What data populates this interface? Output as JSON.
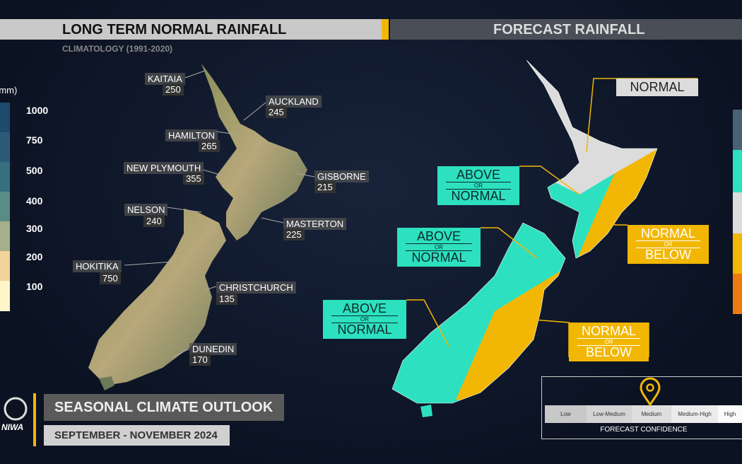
{
  "header": {
    "left_title": "LONG TERM NORMAL RAINFALL",
    "left_subtitle": "CLIMATOLOGY (1991-2020)",
    "right_title": "FORECAST RAINFALL"
  },
  "legend": {
    "unit": "(mm)",
    "levels": [
      "1000",
      "750",
      "500",
      "400",
      "300",
      "200",
      "100"
    ]
  },
  "stations": [
    {
      "name": "KAITAIA",
      "value": "250"
    },
    {
      "name": "AUCKLAND",
      "value": "245"
    },
    {
      "name": "HAMILTON",
      "value": "265"
    },
    {
      "name": "NEW PLYMOUTH",
      "value": "355"
    },
    {
      "name": "GISBORNE",
      "value": "215"
    },
    {
      "name": "NELSON",
      "value": "240"
    },
    {
      "name": "MASTERTON",
      "value": "225"
    },
    {
      "name": "HOKITIKA",
      "value": "750"
    },
    {
      "name": "CHRISTCHURCH",
      "value": "135"
    },
    {
      "name": "DUNEDIN",
      "value": "170"
    }
  ],
  "forecast_regions": [
    {
      "top": "NORMAL"
    },
    {
      "top": "ABOVE",
      "mid": "OR",
      "bottom": "NORMAL"
    },
    {
      "top": "NORMAL",
      "mid": "OR",
      "bottom": "BELOW"
    },
    {
      "top": "ABOVE",
      "mid": "OR",
      "bottom": "NORMAL"
    },
    {
      "top": "ABOVE",
      "mid": "OR",
      "bottom": "NORMAL"
    },
    {
      "top": "NORMAL",
      "mid": "OR",
      "bottom": "BELOW"
    }
  ],
  "confidence": {
    "levels": [
      "Low",
      "Low-Medium",
      "Medium",
      "Medium-High",
      "High"
    ],
    "title": "FORECAST CONFIDENCE"
  },
  "footer": {
    "logo": "NIWA",
    "title": "SEASONAL CLIMATE OUTLOOK",
    "period": "SEPTEMBER - NOVEMBER 2024"
  }
}
